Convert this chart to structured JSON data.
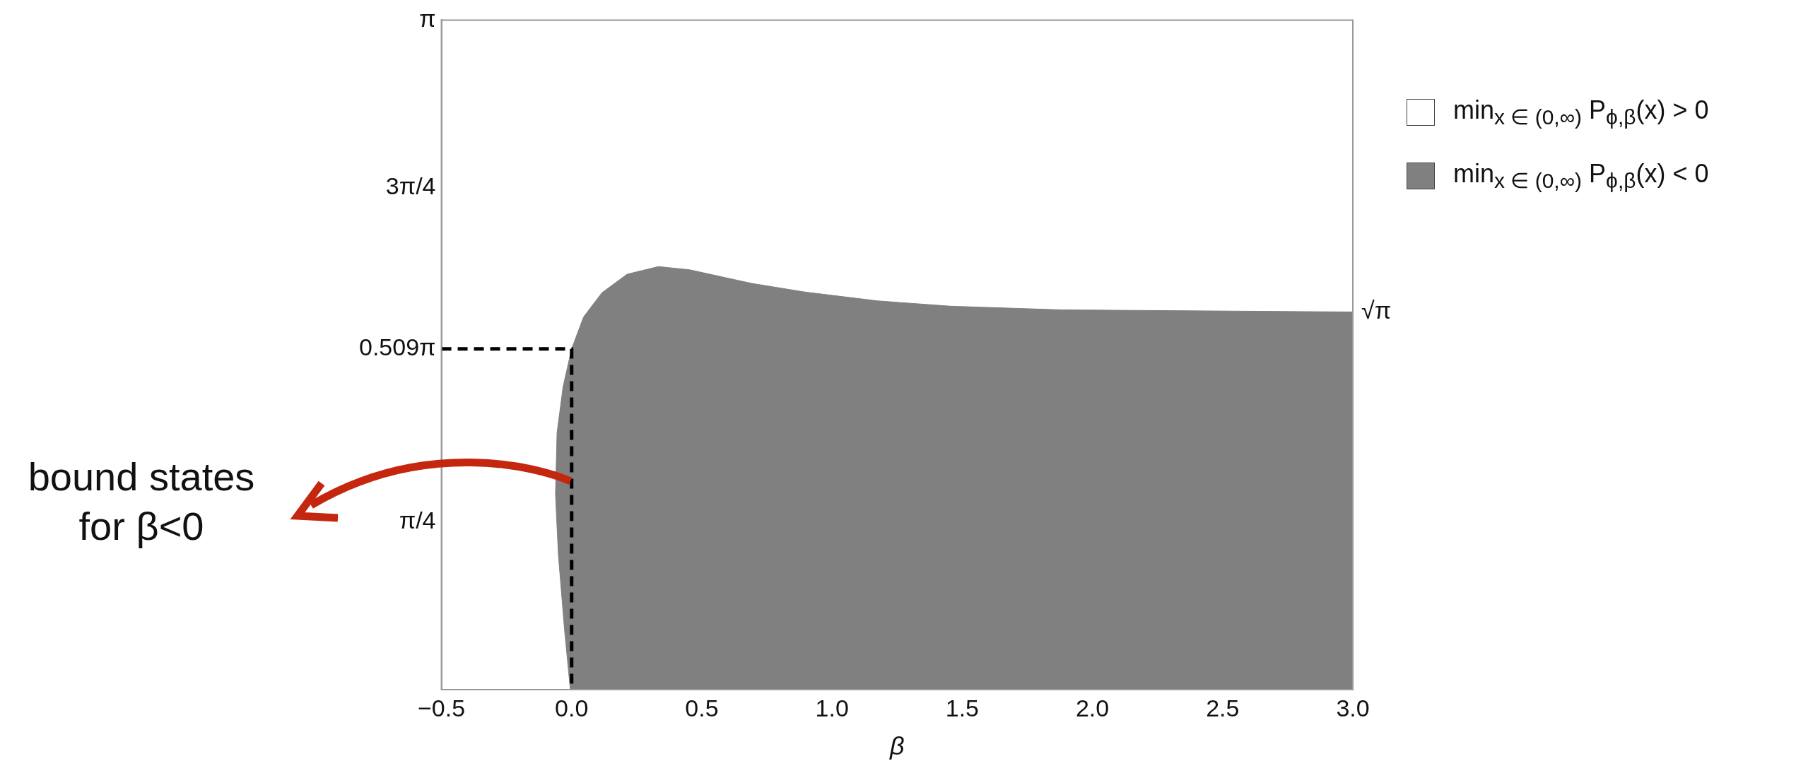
{
  "chart_data": {
    "type": "area",
    "xlabel": "β",
    "xlim": [
      -0.5,
      3.0
    ],
    "ylim": [
      0,
      3.1416
    ],
    "xticks": [
      {
        "value": -0.5,
        "label": "−0.5"
      },
      {
        "value": 0,
        "label": "0.0"
      },
      0.5,
      {
        "value": 1,
        "label": "1.0"
      },
      1.5,
      {
        "value": 2,
        "label": "2.0"
      },
      2.5,
      {
        "value": 3,
        "label": "3.0"
      }
    ],
    "yticks": [
      {
        "value": 0.7854,
        "label": "π/4"
      },
      {
        "value": 1.599,
        "label": "0.509π"
      },
      {
        "value": 2.3562,
        "label": "3π/4"
      },
      {
        "value": 3.1416,
        "label": "π"
      }
    ],
    "legend": "top right",
    "marker": "none",
    "series": [
      {
        "name": "min$_{x ∈ (0,∞)}$ P$_{ϕ,β}$(x) > 0",
        "color": "#ffffff"
      },
      {
        "name": "min$_{x ∈ (0,∞)}$ P$_{ϕ,β}$(x) < 0",
        "color": "#808080",
        "x": [
          -0.005,
          -0.027,
          -0.051,
          -0.062,
          -0.056,
          -0.033,
          0,
          0.046,
          0.117,
          0.213,
          0.333,
          0.453,
          0.692,
          0.894,
          1.175,
          1.457,
          1.88,
          3.0
        ],
        "values": [
          0,
          0.276,
          0.634,
          0.919,
          1.205,
          1.42,
          1.599,
          1.749,
          1.863,
          1.949,
          1.985,
          1.97,
          1.906,
          1.866,
          1.824,
          1.799,
          1.782,
          1.772
        ]
      },
      {
        "type": "line",
        "color": "#000000",
        "line_style": "dashed",
        "x": [
          -0.5,
          0,
          0
        ],
        "values": [
          1.599,
          1.599,
          0
        ]
      }
    ],
    "annotations": [
      "bound states for β<0",
      {
        "text": "√π",
        "x": 3.0,
        "y": 1.772
      }
    ]
  }
}
